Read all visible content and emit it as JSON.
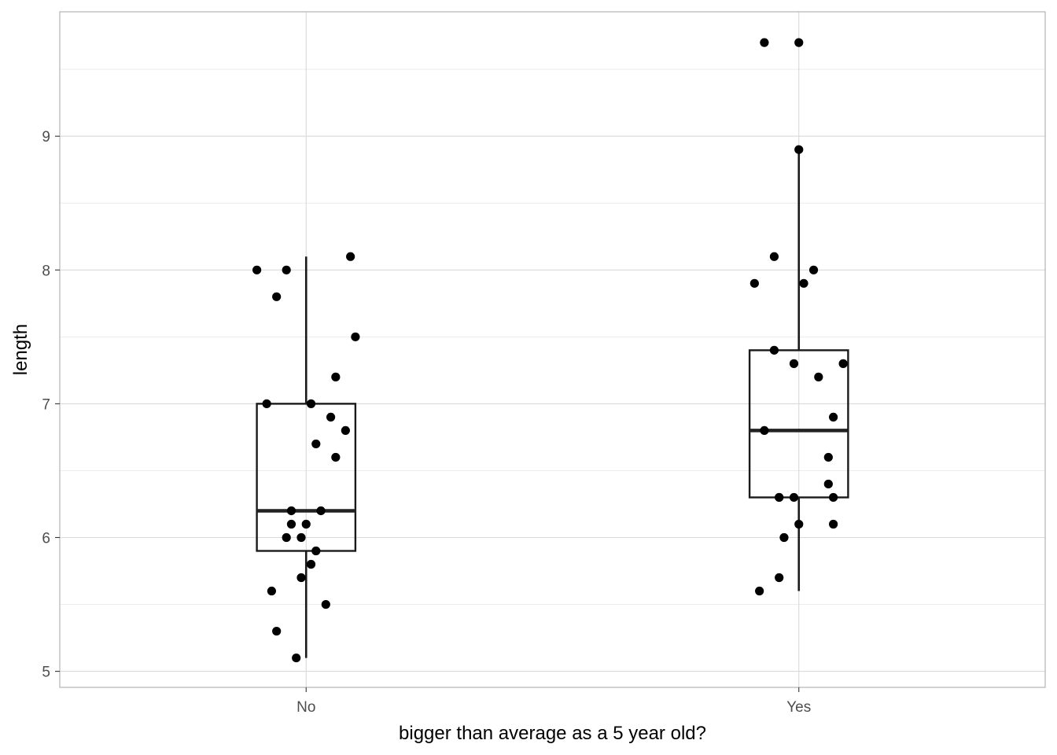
{
  "chart_data": {
    "type": "box",
    "title": "",
    "xlabel": "bigger than average as a 5 year old?",
    "ylabel": "length",
    "categories": [
      "No",
      "Yes"
    ],
    "y_ticks": [
      5,
      6,
      7,
      8,
      9
    ],
    "ylim": [
      4.88,
      9.93
    ],
    "grid": true,
    "theme": "light",
    "boxes": [
      {
        "category": "No",
        "whisker_low": 5.1,
        "q1": 5.9,
        "median": 6.2,
        "q3": 7.0,
        "whisker_high": 8.1
      },
      {
        "category": "Yes",
        "whisker_low": 5.6,
        "q1": 6.3,
        "median": 6.8,
        "q3": 7.4,
        "whisker_high": 8.9
      }
    ],
    "points": [
      {
        "category": "No",
        "jitter": -0.1,
        "value": 8.0
      },
      {
        "category": "No",
        "jitter": -0.04,
        "value": 8.0
      },
      {
        "category": "No",
        "jitter": 0.09,
        "value": 8.1
      },
      {
        "category": "No",
        "jitter": -0.06,
        "value": 7.8
      },
      {
        "category": "No",
        "jitter": 0.1,
        "value": 7.5
      },
      {
        "category": "No",
        "jitter": 0.06,
        "value": 7.2
      },
      {
        "category": "No",
        "jitter": -0.08,
        "value": 7.0
      },
      {
        "category": "No",
        "jitter": 0.01,
        "value": 7.0
      },
      {
        "category": "No",
        "jitter": 0.05,
        "value": 6.9
      },
      {
        "category": "No",
        "jitter": 0.08,
        "value": 6.8
      },
      {
        "category": "No",
        "jitter": 0.02,
        "value": 6.7
      },
      {
        "category": "No",
        "jitter": 0.06,
        "value": 6.6
      },
      {
        "category": "No",
        "jitter": -0.03,
        "value": 6.2
      },
      {
        "category": "No",
        "jitter": 0.03,
        "value": 6.2
      },
      {
        "category": "No",
        "jitter": -0.03,
        "value": 6.1
      },
      {
        "category": "No",
        "jitter": 0.0,
        "value": 6.1
      },
      {
        "category": "No",
        "jitter": -0.04,
        "value": 6.0
      },
      {
        "category": "No",
        "jitter": -0.01,
        "value": 6.0
      },
      {
        "category": "No",
        "jitter": 0.02,
        "value": 5.9
      },
      {
        "category": "No",
        "jitter": 0.01,
        "value": 5.8
      },
      {
        "category": "No",
        "jitter": -0.01,
        "value": 5.7
      },
      {
        "category": "No",
        "jitter": -0.07,
        "value": 5.6
      },
      {
        "category": "No",
        "jitter": 0.04,
        "value": 5.5
      },
      {
        "category": "No",
        "jitter": -0.06,
        "value": 5.3
      },
      {
        "category": "No",
        "jitter": -0.02,
        "value": 5.1
      },
      {
        "category": "Yes",
        "jitter": -0.07,
        "value": 9.7
      },
      {
        "category": "Yes",
        "jitter": 0.0,
        "value": 9.7
      },
      {
        "category": "Yes",
        "jitter": 0.0,
        "value": 8.9
      },
      {
        "category": "Yes",
        "jitter": -0.05,
        "value": 8.1
      },
      {
        "category": "Yes",
        "jitter": 0.03,
        "value": 8.0
      },
      {
        "category": "Yes",
        "jitter": -0.09,
        "value": 7.9
      },
      {
        "category": "Yes",
        "jitter": 0.01,
        "value": 7.9
      },
      {
        "category": "Yes",
        "jitter": -0.05,
        "value": 7.4
      },
      {
        "category": "Yes",
        "jitter": -0.01,
        "value": 7.3
      },
      {
        "category": "Yes",
        "jitter": 0.09,
        "value": 7.3
      },
      {
        "category": "Yes",
        "jitter": 0.04,
        "value": 7.2
      },
      {
        "category": "Yes",
        "jitter": 0.07,
        "value": 6.9
      },
      {
        "category": "Yes",
        "jitter": -0.07,
        "value": 6.8
      },
      {
        "category": "Yes",
        "jitter": 0.06,
        "value": 6.6
      },
      {
        "category": "Yes",
        "jitter": 0.06,
        "value": 6.4
      },
      {
        "category": "Yes",
        "jitter": -0.04,
        "value": 6.3
      },
      {
        "category": "Yes",
        "jitter": -0.04,
        "value": 6.3
      },
      {
        "category": "Yes",
        "jitter": -0.01,
        "value": 6.3
      },
      {
        "category": "Yes",
        "jitter": 0.07,
        "value": 6.3
      },
      {
        "category": "Yes",
        "jitter": 0.0,
        "value": 6.1
      },
      {
        "category": "Yes",
        "jitter": 0.07,
        "value": 6.1
      },
      {
        "category": "Yes",
        "jitter": -0.03,
        "value": 6.0
      },
      {
        "category": "Yes",
        "jitter": -0.04,
        "value": 5.7
      },
      {
        "category": "Yes",
        "jitter": -0.08,
        "value": 5.6
      }
    ],
    "colors": {
      "box": "#1a1a1a",
      "median": "#222222",
      "point": "#000000",
      "grid_major": "#d9d9d9",
      "grid_minor": "#ececec",
      "panel_border": "#b3b3b3"
    }
  }
}
